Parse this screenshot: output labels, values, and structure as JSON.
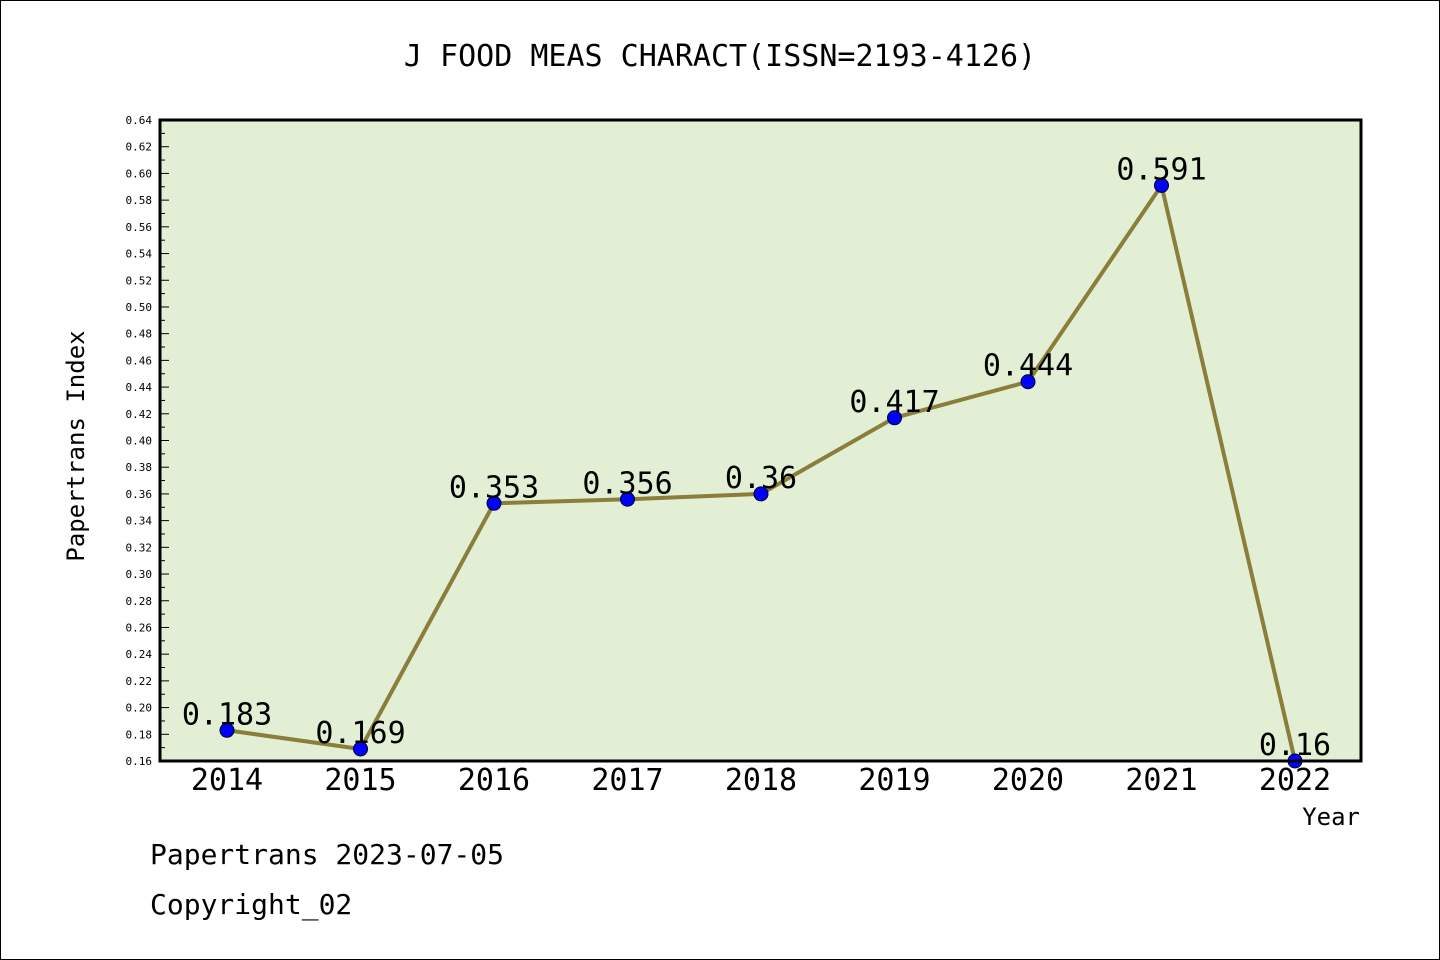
{
  "chart_data": {
    "type": "line",
    "title": "J FOOD MEAS CHARACT(ISSN=2193-4126)",
    "xlabel": "Year",
    "ylabel": "Papertrans Index",
    "categories": [
      "2014",
      "2015",
      "2016",
      "2017",
      "2018",
      "2019",
      "2020",
      "2021",
      "2022"
    ],
    "series": [
      {
        "values": [
          0.183,
          0.169,
          0.353,
          0.356,
          0.36,
          0.417,
          0.444,
          0.591,
          0.16
        ],
        "labels": [
          "0.183",
          "0.169",
          "0.353",
          "0.356",
          "0.36",
          "0.417",
          "0.444",
          "0.591",
          "0.16"
        ]
      }
    ],
    "ylim": [
      0.16,
      0.64
    ],
    "ytick_values": [
      0.16,
      0.18,
      0.2,
      0.22,
      0.24,
      0.26,
      0.28,
      0.3,
      0.32,
      0.34,
      0.36,
      0.38,
      0.4,
      0.42,
      0.44,
      0.46,
      0.48,
      0.5,
      0.52,
      0.54,
      0.56,
      0.58,
      0.6,
      0.62,
      0.64
    ],
    "ytick_labels": [
      "0.16",
      "0.18",
      "0.20",
      "0.22",
      "0.24",
      "0.26",
      "0.28",
      "0.30",
      "0.32",
      "0.34",
      "0.36",
      "0.38",
      "0.40",
      "0.42",
      "0.44",
      "0.46",
      "0.48",
      "0.50",
      "0.52",
      "0.54",
      "0.56",
      "0.58",
      "0.60",
      "0.62",
      "0.64"
    ],
    "grid": false,
    "colors": {
      "plot_background": "#e2efd4",
      "line": "#8b7d3a",
      "marker": "#0000ff",
      "axes": "#000000"
    }
  },
  "footer": {
    "line1": "Papertrans 2023-07-05",
    "line2": "Copyright_02"
  }
}
